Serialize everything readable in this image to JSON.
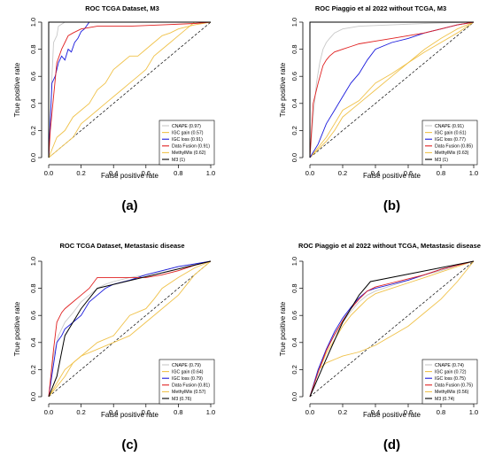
{
  "colors": {
    "CNAPE": "#c8c8c8",
    "IGC_gain": "#f0c24a",
    "IGC_loss": "#1a1adc",
    "Data_Fusion": "#e02020",
    "MethylMix": "#f0c24a",
    "M3": "#000000"
  },
  "chart_data": [
    {
      "type": "line",
      "title": "ROC TCGA Dataset,  M3",
      "xlabel": "False positive rate",
      "ylabel": "True positive rate",
      "panel_label": "(a)",
      "xlim": [
        0,
        1
      ],
      "ylim": [
        0,
        1
      ],
      "x_ticks": [
        "0.0",
        "0.2",
        "0.4",
        "0.6",
        "0.8",
        "1.0"
      ],
      "y_ticks": [
        "0.0",
        "0.2",
        "0.4",
        "0.6",
        "0.8",
        "1.0"
      ],
      "legend_position": "bottom-right",
      "series": [
        {
          "name": "CNAPE (0.97)",
          "color_key": "CNAPE",
          "x": [
            0,
            0.02,
            0.03,
            0.05,
            0.06,
            0.1,
            0.15,
            0.2,
            0.3,
            1.0
          ],
          "y": [
            0,
            0.6,
            0.85,
            0.9,
            0.97,
            1.0,
            1.0,
            1.0,
            1.0,
            1.0
          ]
        },
        {
          "name": "IGC gain (0.57)",
          "color_key": "IGC_gain",
          "x": [
            0,
            0.05,
            0.1,
            0.15,
            0.2,
            0.25,
            0.3,
            0.35,
            0.4,
            0.45,
            0.5,
            0.55,
            0.6,
            0.65,
            0.7,
            0.75,
            0.8,
            0.85,
            0.9,
            1.0
          ],
          "y": [
            0,
            0.05,
            0.1,
            0.15,
            0.25,
            0.3,
            0.35,
            0.4,
            0.45,
            0.5,
            0.55,
            0.6,
            0.65,
            0.75,
            0.8,
            0.85,
            0.9,
            0.95,
            1.0,
            1.0
          ]
        },
        {
          "name": "IGC loss (0.91)",
          "color_key": "IGC_loss",
          "x": [
            0,
            0.02,
            0.04,
            0.06,
            0.08,
            0.1,
            0.12,
            0.14,
            0.16,
            0.18,
            0.2,
            0.22,
            0.25,
            0.3,
            0.5,
            1.0
          ],
          "y": [
            0,
            0.55,
            0.6,
            0.7,
            0.75,
            0.72,
            0.8,
            0.78,
            0.85,
            0.88,
            0.93,
            0.95,
            1.0,
            1.0,
            1.0,
            1.0
          ]
        },
        {
          "name": "Data Fusion (0.91)",
          "color_key": "Data_Fusion",
          "x": [
            0,
            0.01,
            0.03,
            0.05,
            0.08,
            0.1,
            0.12,
            0.15,
            0.2,
            0.3,
            0.5,
            0.7,
            0.9,
            1.0
          ],
          "y": [
            0,
            0.2,
            0.45,
            0.7,
            0.8,
            0.85,
            0.9,
            0.92,
            0.95,
            0.97,
            0.97,
            0.98,
            0.99,
            1.0
          ]
        },
        {
          "name": "MethylMix (0.62)",
          "color_key": "MethylMix",
          "x": [
            0,
            0.05,
            0.1,
            0.15,
            0.2,
            0.25,
            0.3,
            0.35,
            0.4,
            0.45,
            0.5,
            0.55,
            0.6,
            0.65,
            0.7,
            0.75,
            0.8,
            0.9,
            1.0
          ],
          "y": [
            0,
            0.15,
            0.2,
            0.3,
            0.35,
            0.4,
            0.5,
            0.55,
            0.65,
            0.7,
            0.75,
            0.75,
            0.8,
            0.85,
            0.9,
            0.92,
            0.95,
            0.98,
            1.0
          ]
        },
        {
          "name": "M3 (1)",
          "color_key": "M3",
          "x": [
            0,
            0,
            1
          ],
          "y": [
            0,
            1,
            1
          ]
        }
      ]
    },
    {
      "type": "line",
      "title": "ROC Piaggio et al 2022 without TCGA,  M3",
      "xlabel": "False positive rate",
      "ylabel": "True positive rate",
      "panel_label": "(b)",
      "xlim": [
        0,
        1
      ],
      "ylim": [
        0,
        1
      ],
      "x_ticks": [
        "0.0",
        "0.2",
        "0.4",
        "0.6",
        "0.8",
        "1.0"
      ],
      "y_ticks": [
        "0.0",
        "0.2",
        "0.4",
        "0.6",
        "0.8",
        "1.0"
      ],
      "legend_position": "bottom-right",
      "series": [
        {
          "name": "CNAPE (0.91)",
          "color_key": "CNAPE",
          "x": [
            0,
            0.02,
            0.04,
            0.06,
            0.08,
            0.1,
            0.12,
            0.15,
            0.2,
            0.3,
            0.5,
            0.7,
            1.0
          ],
          "y": [
            0,
            0.3,
            0.55,
            0.7,
            0.8,
            0.85,
            0.88,
            0.92,
            0.95,
            0.97,
            0.98,
            0.99,
            1.0
          ]
        },
        {
          "name": "IGC gain (0.61)",
          "color_key": "IGC_gain",
          "x": [
            0,
            0.1,
            0.15,
            0.2,
            0.3,
            0.4,
            0.5,
            0.6,
            0.7,
            0.8,
            0.9,
            1.0
          ],
          "y": [
            0,
            0.12,
            0.2,
            0.3,
            0.4,
            0.5,
            0.6,
            0.7,
            0.8,
            0.88,
            0.95,
            1.0
          ]
        },
        {
          "name": "IGC loss (0.77)",
          "color_key": "IGC_loss",
          "x": [
            0,
            0.05,
            0.1,
            0.15,
            0.2,
            0.25,
            0.3,
            0.35,
            0.4,
            0.5,
            0.6,
            0.7,
            0.8,
            0.9,
            1.0
          ],
          "y": [
            0,
            0.1,
            0.25,
            0.35,
            0.45,
            0.55,
            0.62,
            0.72,
            0.8,
            0.85,
            0.88,
            0.92,
            0.95,
            0.98,
            1.0
          ]
        },
        {
          "name": "Data Fusion (0.85)",
          "color_key": "Data_Fusion",
          "x": [
            0,
            0.02,
            0.05,
            0.08,
            0.1,
            0.12,
            0.15,
            0.2,
            0.25,
            0.3,
            0.4,
            0.5,
            0.6,
            0.7,
            0.8,
            0.9,
            1.0
          ],
          "y": [
            0,
            0.4,
            0.55,
            0.68,
            0.72,
            0.75,
            0.78,
            0.8,
            0.82,
            0.84,
            0.86,
            0.88,
            0.9,
            0.92,
            0.95,
            0.98,
            1.0
          ]
        },
        {
          "name": "MethylMix (0.63)",
          "color_key": "MethylMix",
          "x": [
            0,
            0.1,
            0.15,
            0.2,
            0.3,
            0.4,
            0.5,
            0.6,
            0.7,
            0.8,
            0.9,
            1.0
          ],
          "y": [
            0,
            0.15,
            0.25,
            0.35,
            0.42,
            0.55,
            0.62,
            0.7,
            0.78,
            0.85,
            0.92,
            1.0
          ]
        },
        {
          "name": "M3 (1)",
          "color_key": "M3",
          "x": [
            0,
            0,
            1
          ],
          "y": [
            0,
            1,
            1
          ]
        }
      ]
    },
    {
      "type": "line",
      "title": "ROC TCGA Dataset,  Metastasic disease",
      "xlabel": "False positive rate",
      "ylabel": "True positive rate",
      "panel_label": "(c)",
      "xlim": [
        0,
        1
      ],
      "ylim": [
        0,
        1
      ],
      "x_ticks": [
        "0.0",
        "0.2",
        "0.4",
        "0.6",
        "0.8",
        "1.0"
      ],
      "y_ticks": [
        "0.0",
        "0.2",
        "0.4",
        "0.6",
        "0.8",
        "1.0"
      ],
      "legend_position": "bottom-right",
      "series": [
        {
          "name": "CNAPE (0.79)",
          "color_key": "CNAPE",
          "x": [
            0,
            0.03,
            0.06,
            0.1,
            0.15,
            0.2,
            0.25,
            0.3,
            0.35,
            0.4,
            0.5,
            0.6,
            0.7,
            0.8,
            1.0
          ],
          "y": [
            0,
            0.3,
            0.45,
            0.55,
            0.62,
            0.7,
            0.75,
            0.8,
            0.83,
            0.85,
            0.88,
            0.9,
            0.93,
            0.96,
            1.0
          ]
        },
        {
          "name": "IGC gain (0.64)",
          "color_key": "IGC_gain",
          "x": [
            0,
            0.1,
            0.15,
            0.2,
            0.3,
            0.4,
            0.5,
            0.6,
            0.65,
            0.7,
            0.8,
            0.9,
            1.0
          ],
          "y": [
            0,
            0.2,
            0.25,
            0.3,
            0.4,
            0.45,
            0.6,
            0.65,
            0.72,
            0.8,
            0.88,
            0.95,
            1.0
          ]
        },
        {
          "name": "IGC loss (0.79)",
          "color_key": "IGC_loss",
          "x": [
            0,
            0.05,
            0.08,
            0.1,
            0.15,
            0.2,
            0.25,
            0.3,
            0.35,
            0.4,
            0.5,
            0.6,
            0.7,
            0.8,
            0.9,
            1.0
          ],
          "y": [
            0,
            0.4,
            0.45,
            0.5,
            0.55,
            0.6,
            0.7,
            0.75,
            0.8,
            0.83,
            0.86,
            0.9,
            0.93,
            0.96,
            0.98,
            1.0
          ]
        },
        {
          "name": "Data Fusion (0.81)",
          "color_key": "Data_Fusion",
          "x": [
            0,
            0.03,
            0.05,
            0.08,
            0.1,
            0.15,
            0.2,
            0.25,
            0.3,
            0.4,
            0.5,
            0.6,
            0.7,
            0.8,
            0.9,
            1.0
          ],
          "y": [
            0,
            0.35,
            0.55,
            0.62,
            0.65,
            0.7,
            0.75,
            0.8,
            0.88,
            0.88,
            0.88,
            0.88,
            0.9,
            0.93,
            0.97,
            1.0
          ]
        },
        {
          "name": "MethylMix (0.57)",
          "color_key": "MethylMix",
          "x": [
            0,
            0.1,
            0.15,
            0.2,
            0.3,
            0.4,
            0.5,
            0.6,
            0.7,
            0.8,
            0.9,
            1.0
          ],
          "y": [
            0,
            0.15,
            0.25,
            0.3,
            0.35,
            0.4,
            0.45,
            0.55,
            0.65,
            0.75,
            0.9,
            1.0
          ]
        },
        {
          "name": "M3 (0.76)",
          "color_key": "M3",
          "x": [
            0,
            0.05,
            0.1,
            0.2,
            0.3,
            1.0
          ],
          "y": [
            0,
            0.15,
            0.45,
            0.65,
            0.8,
            1.0
          ]
        }
      ]
    },
    {
      "type": "line",
      "title": "ROC Piaggio et al 2022 without TCGA,  Metastasic disease",
      "xlabel": "False positive rate",
      "ylabel": "True positive rate",
      "panel_label": "(d)",
      "xlim": [
        0,
        1
      ],
      "ylim": [
        0,
        1
      ],
      "x_ticks": [
        "0.0",
        "0.2",
        "0.4",
        "0.6",
        "0.8",
        "1.0"
      ],
      "y_ticks": [
        "0.0",
        "0.2",
        "0.4",
        "0.6",
        "0.8",
        "1.0"
      ],
      "legend_position": "bottom-right",
      "series": [
        {
          "name": "CNAPE (0.74)",
          "color_key": "CNAPE",
          "x": [
            0,
            0.05,
            0.1,
            0.15,
            0.2,
            0.25,
            0.3,
            0.35,
            0.4,
            0.5,
            0.6,
            0.7,
            0.8,
            0.9,
            1.0
          ],
          "y": [
            0,
            0.2,
            0.35,
            0.45,
            0.55,
            0.63,
            0.7,
            0.75,
            0.78,
            0.82,
            0.86,
            0.9,
            0.93,
            0.97,
            1.0
          ]
        },
        {
          "name": "IGC gain (0.72)",
          "color_key": "IGC_gain",
          "x": [
            0,
            0.05,
            0.1,
            0.15,
            0.2,
            0.25,
            0.3,
            0.35,
            0.4,
            0.5,
            0.6,
            0.7,
            0.8,
            0.9,
            1.0
          ],
          "y": [
            0,
            0.18,
            0.32,
            0.42,
            0.52,
            0.6,
            0.66,
            0.72,
            0.76,
            0.8,
            0.84,
            0.88,
            0.92,
            0.96,
            1.0
          ]
        },
        {
          "name": "IGC loss (0.75)",
          "color_key": "IGC_loss",
          "x": [
            0,
            0.05,
            0.1,
            0.15,
            0.2,
            0.25,
            0.3,
            0.35,
            0.4,
            0.5,
            0.6,
            0.7,
            0.8,
            0.9,
            1.0
          ],
          "y": [
            0,
            0.2,
            0.35,
            0.48,
            0.58,
            0.66,
            0.73,
            0.78,
            0.8,
            0.83,
            0.86,
            0.9,
            0.94,
            0.97,
            1.0
          ]
        },
        {
          "name": "Data Fusion (0.75)",
          "color_key": "Data_Fusion",
          "x": [
            0,
            0.05,
            0.1,
            0.15,
            0.2,
            0.25,
            0.3,
            0.35,
            0.4,
            0.5,
            0.6,
            0.7,
            0.8,
            0.9,
            1.0
          ],
          "y": [
            0,
            0.18,
            0.34,
            0.46,
            0.56,
            0.65,
            0.72,
            0.78,
            0.81,
            0.84,
            0.87,
            0.9,
            0.94,
            0.97,
            1.0
          ]
        },
        {
          "name": "MethylMix (0.56)",
          "color_key": "MethylMix",
          "x": [
            0,
            0.05,
            0.1,
            0.2,
            0.3,
            0.4,
            0.5,
            0.6,
            0.7,
            0.8,
            0.9,
            1.0
          ],
          "y": [
            0,
            0.2,
            0.25,
            0.3,
            0.33,
            0.38,
            0.45,
            0.52,
            0.62,
            0.72,
            0.85,
            1.0
          ]
        },
        {
          "name": "M3 (0.74)",
          "color_key": "M3",
          "x": [
            0,
            0.1,
            0.2,
            0.3,
            0.37,
            1.0
          ],
          "y": [
            0,
            0.28,
            0.55,
            0.75,
            0.85,
            1.0
          ]
        }
      ]
    }
  ]
}
